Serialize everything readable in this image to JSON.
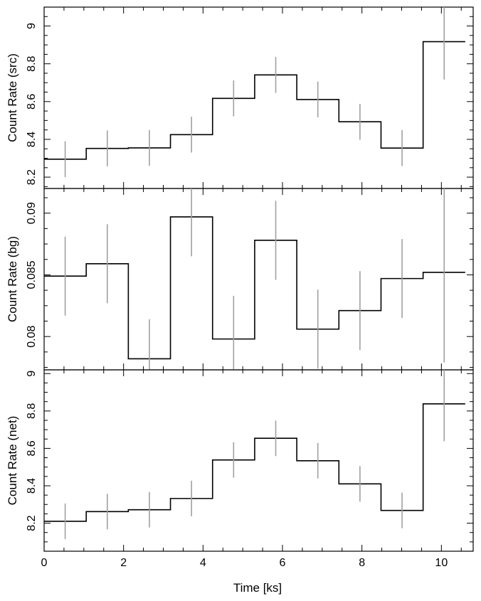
{
  "chart_data": [
    {
      "type": "line",
      "subtype": "step",
      "ylabel": "Count Rate (src)",
      "ylim": [
        8.14,
        9.1
      ],
      "yticks": [
        8.2,
        8.4,
        8.6,
        8.8,
        9.0
      ],
      "ytick_labels": [
        "8.2",
        "8.4",
        "8.6",
        "8.8",
        "9"
      ],
      "x": [
        0.53,
        1.59,
        2.65,
        3.71,
        4.77,
        5.83,
        6.89,
        7.95,
        9.01,
        10.07
      ],
      "values": [
        8.295,
        8.352,
        8.355,
        8.425,
        8.617,
        8.741,
        8.611,
        8.493,
        8.354,
        8.917
      ],
      "errors": [
        0.095,
        0.095,
        0.095,
        0.095,
        0.095,
        0.095,
        0.095,
        0.095,
        0.095,
        0.2
      ]
    },
    {
      "type": "line",
      "subtype": "step",
      "ylabel": "Count Rate (bg)",
      "ylim": [
        0.0773,
        0.092
      ],
      "yticks": [
        0.08,
        0.085,
        0.09
      ],
      "ytick_labels": [
        "0.08",
        "0.085",
        "0.09"
      ],
      "x": [
        0.53,
        1.59,
        2.65,
        3.71,
        4.77,
        5.83,
        6.89,
        7.95,
        9.01,
        10.07
      ],
      "values": [
        0.0849,
        0.0859,
        0.0782,
        0.0897,
        0.0798,
        0.0878,
        0.0806,
        0.0821,
        0.0847,
        0.0852
      ],
      "errors": [
        0.0032,
        0.0032,
        0.0032,
        0.0032,
        0.0035,
        0.0032,
        0.0032,
        0.0032,
        0.0032,
        0.0073
      ]
    },
    {
      "type": "line",
      "subtype": "step",
      "ylabel": "Count Rate (net)",
      "xlabel": "Time [ks]",
      "xlim": [
        0,
        10.8
      ],
      "xticks": [
        0,
        2,
        4,
        6,
        8,
        10
      ],
      "xtick_labels": [
        "0",
        "2",
        "4",
        "6",
        "8",
        "10"
      ],
      "ylim": [
        8.05,
        9.02
      ],
      "yticks": [
        8.2,
        8.4,
        8.6,
        8.8,
        9.0
      ],
      "ytick_labels": [
        "8.2",
        "8.4",
        "8.6",
        "8.8",
        "9"
      ],
      "x": [
        0.53,
        1.59,
        2.65,
        3.71,
        4.77,
        5.83,
        6.89,
        7.95,
        9.01,
        10.07
      ],
      "values": [
        8.21,
        8.262,
        8.272,
        8.332,
        8.538,
        8.654,
        8.534,
        8.41,
        8.268,
        8.838
      ],
      "errors": [
        0.095,
        0.095,
        0.095,
        0.095,
        0.095,
        0.095,
        0.095,
        0.095,
        0.095,
        0.2
      ]
    }
  ],
  "style": {
    "step_color": "#000000",
    "errorbar_color": "#a0a0a0"
  }
}
